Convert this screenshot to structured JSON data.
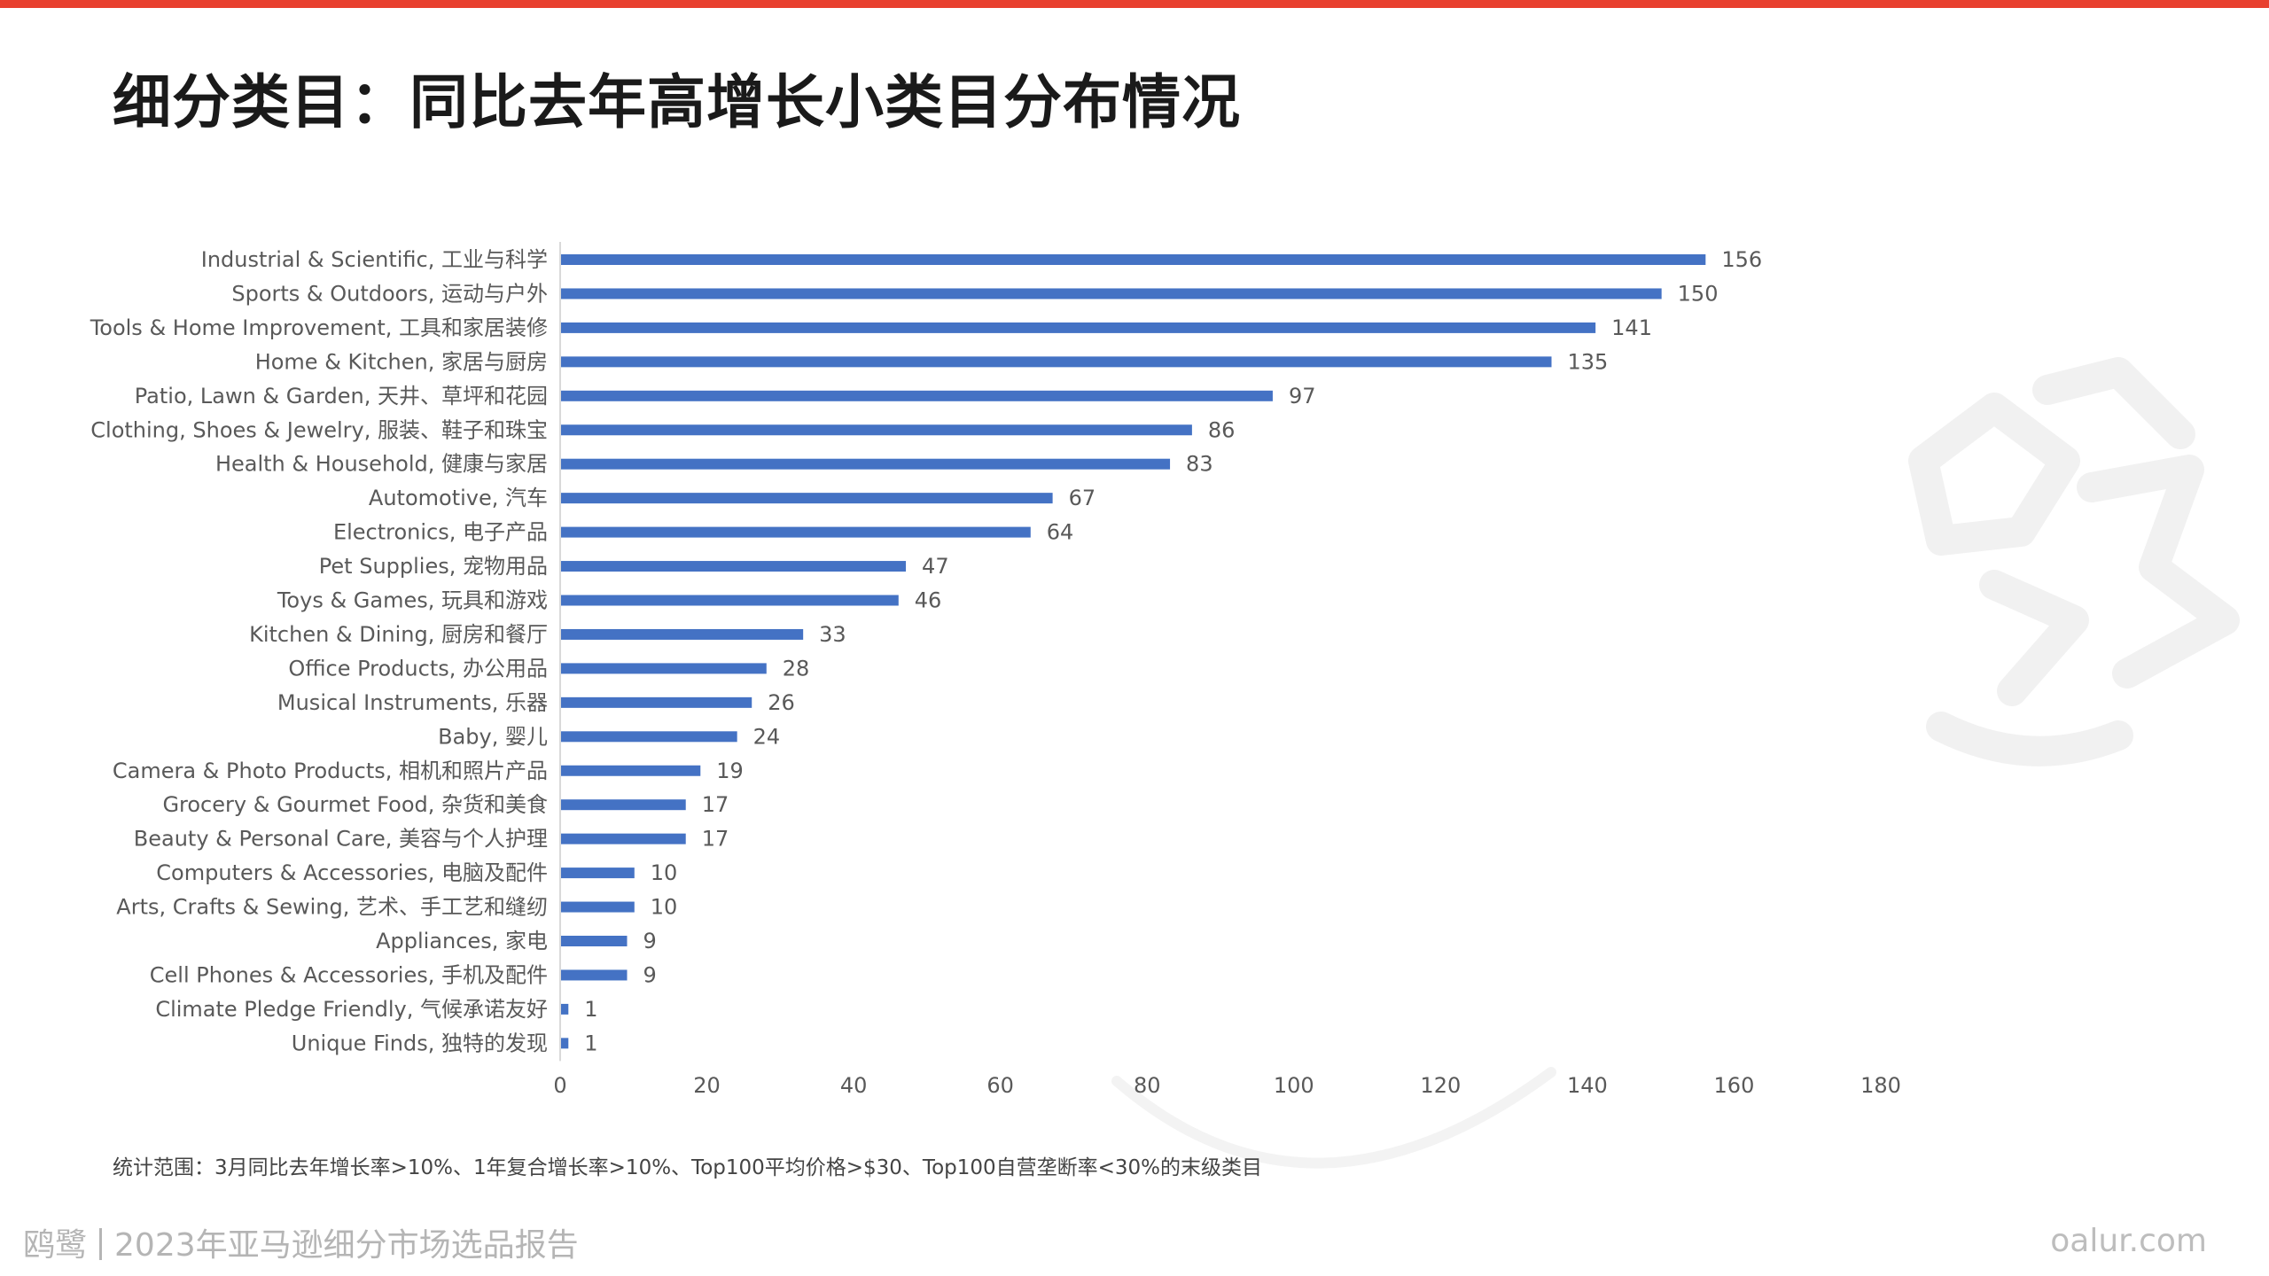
{
  "theme": {
    "accent": "#e8402f",
    "bar_color": "#4472c4",
    "text_color": "#595959",
    "axis_color": "#d9d9d9"
  },
  "title": "细分类目：同比去年高增长小类目分布情况",
  "footnote": "统计范围：3月同比去年增长率>10%、1年复合增长率>10%、Top100平均价格>$30、Top100自营垄断率<30%的末级类目",
  "brand": {
    "name": "鸥鹭",
    "report": "2023年亚马逊细分市场选品报告"
  },
  "site": "oalur.com",
  "chart_data": {
    "type": "bar",
    "orientation": "horizontal",
    "categories": [
      "Industrial & Scientific, 工业与科学",
      "Sports & Outdoors, 运动与户外",
      "Tools & Home Improvement, 工具和家居装修",
      "Home & Kitchen, 家居与厨房",
      "Patio, Lawn & Garden, 天井、草坪和花园",
      "Clothing, Shoes & Jewelry, 服装、鞋子和珠宝",
      "Health & Household, 健康与家居",
      "Automotive, 汽车",
      "Electronics, 电子产品",
      "Pet Supplies, 宠物用品",
      "Toys & Games, 玩具和游戏",
      "Kitchen & Dining, 厨房和餐厅",
      "Office Products, 办公用品",
      "Musical Instruments, 乐器",
      "Baby, 婴儿",
      "Camera & Photo Products, 相机和照片产品",
      "Grocery & Gourmet Food, 杂货和美食",
      "Beauty & Personal Care, 美容与个人护理",
      "Computers & Accessories, 电脑及配件",
      "Arts, Crafts & Sewing, 艺术、手工艺和缝纫",
      "Appliances, 家电",
      "Cell Phones & Accessories, 手机及配件",
      "Climate Pledge Friendly, 气候承诺友好",
      "Unique Finds, 独特的发现"
    ],
    "values": [
      156,
      150,
      141,
      135,
      97,
      86,
      83,
      67,
      64,
      47,
      46,
      33,
      28,
      26,
      24,
      19,
      17,
      17,
      10,
      10,
      9,
      9,
      1,
      1
    ],
    "xlim": [
      0,
      180
    ],
    "xticks": [
      0,
      20,
      40,
      60,
      80,
      100,
      120,
      140,
      160,
      180
    ],
    "data_labels": true,
    "grid": false,
    "legend": "none"
  }
}
